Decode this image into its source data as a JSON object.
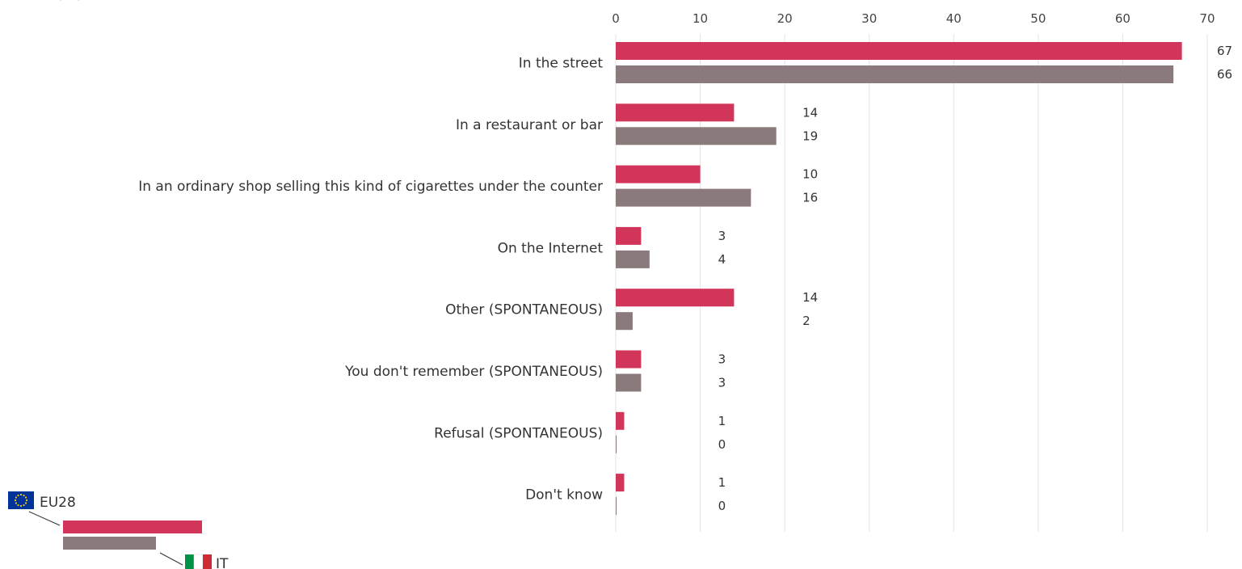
{
  "chart_data": {
    "type": "bar",
    "orientation": "horizontal",
    "title_fragment": "(%)",
    "categories": [
      "In the street",
      "In a restaurant or bar",
      "In an ordinary shop selling this kind of cigarettes under the counter",
      "On the Internet",
      "Other (SPONTANEOUS)",
      "You don't remember (SPONTANEOUS)",
      "Refusal (SPONTANEOUS)",
      "Don't know"
    ],
    "series": [
      {
        "name": "EU28",
        "color": "#d2355a",
        "values": [
          67,
          14,
          10,
          3,
          14,
          3,
          1,
          1
        ]
      },
      {
        "name": "IT",
        "color": "#8b7a7c",
        "values": [
          66,
          19,
          16,
          4,
          2,
          3,
          0,
          0
        ]
      }
    ],
    "xlim": [
      0,
      70
    ],
    "ticks": [
      0,
      10,
      20,
      30,
      40,
      50,
      60,
      70
    ],
    "grid": true,
    "legend_position": "bottom-left"
  },
  "legend": {
    "eu_label": "EU28",
    "it_label": "IT",
    "eu_flag_icon": "eu-flag-icon",
    "it_flag_icon": "italy-flag-icon"
  }
}
